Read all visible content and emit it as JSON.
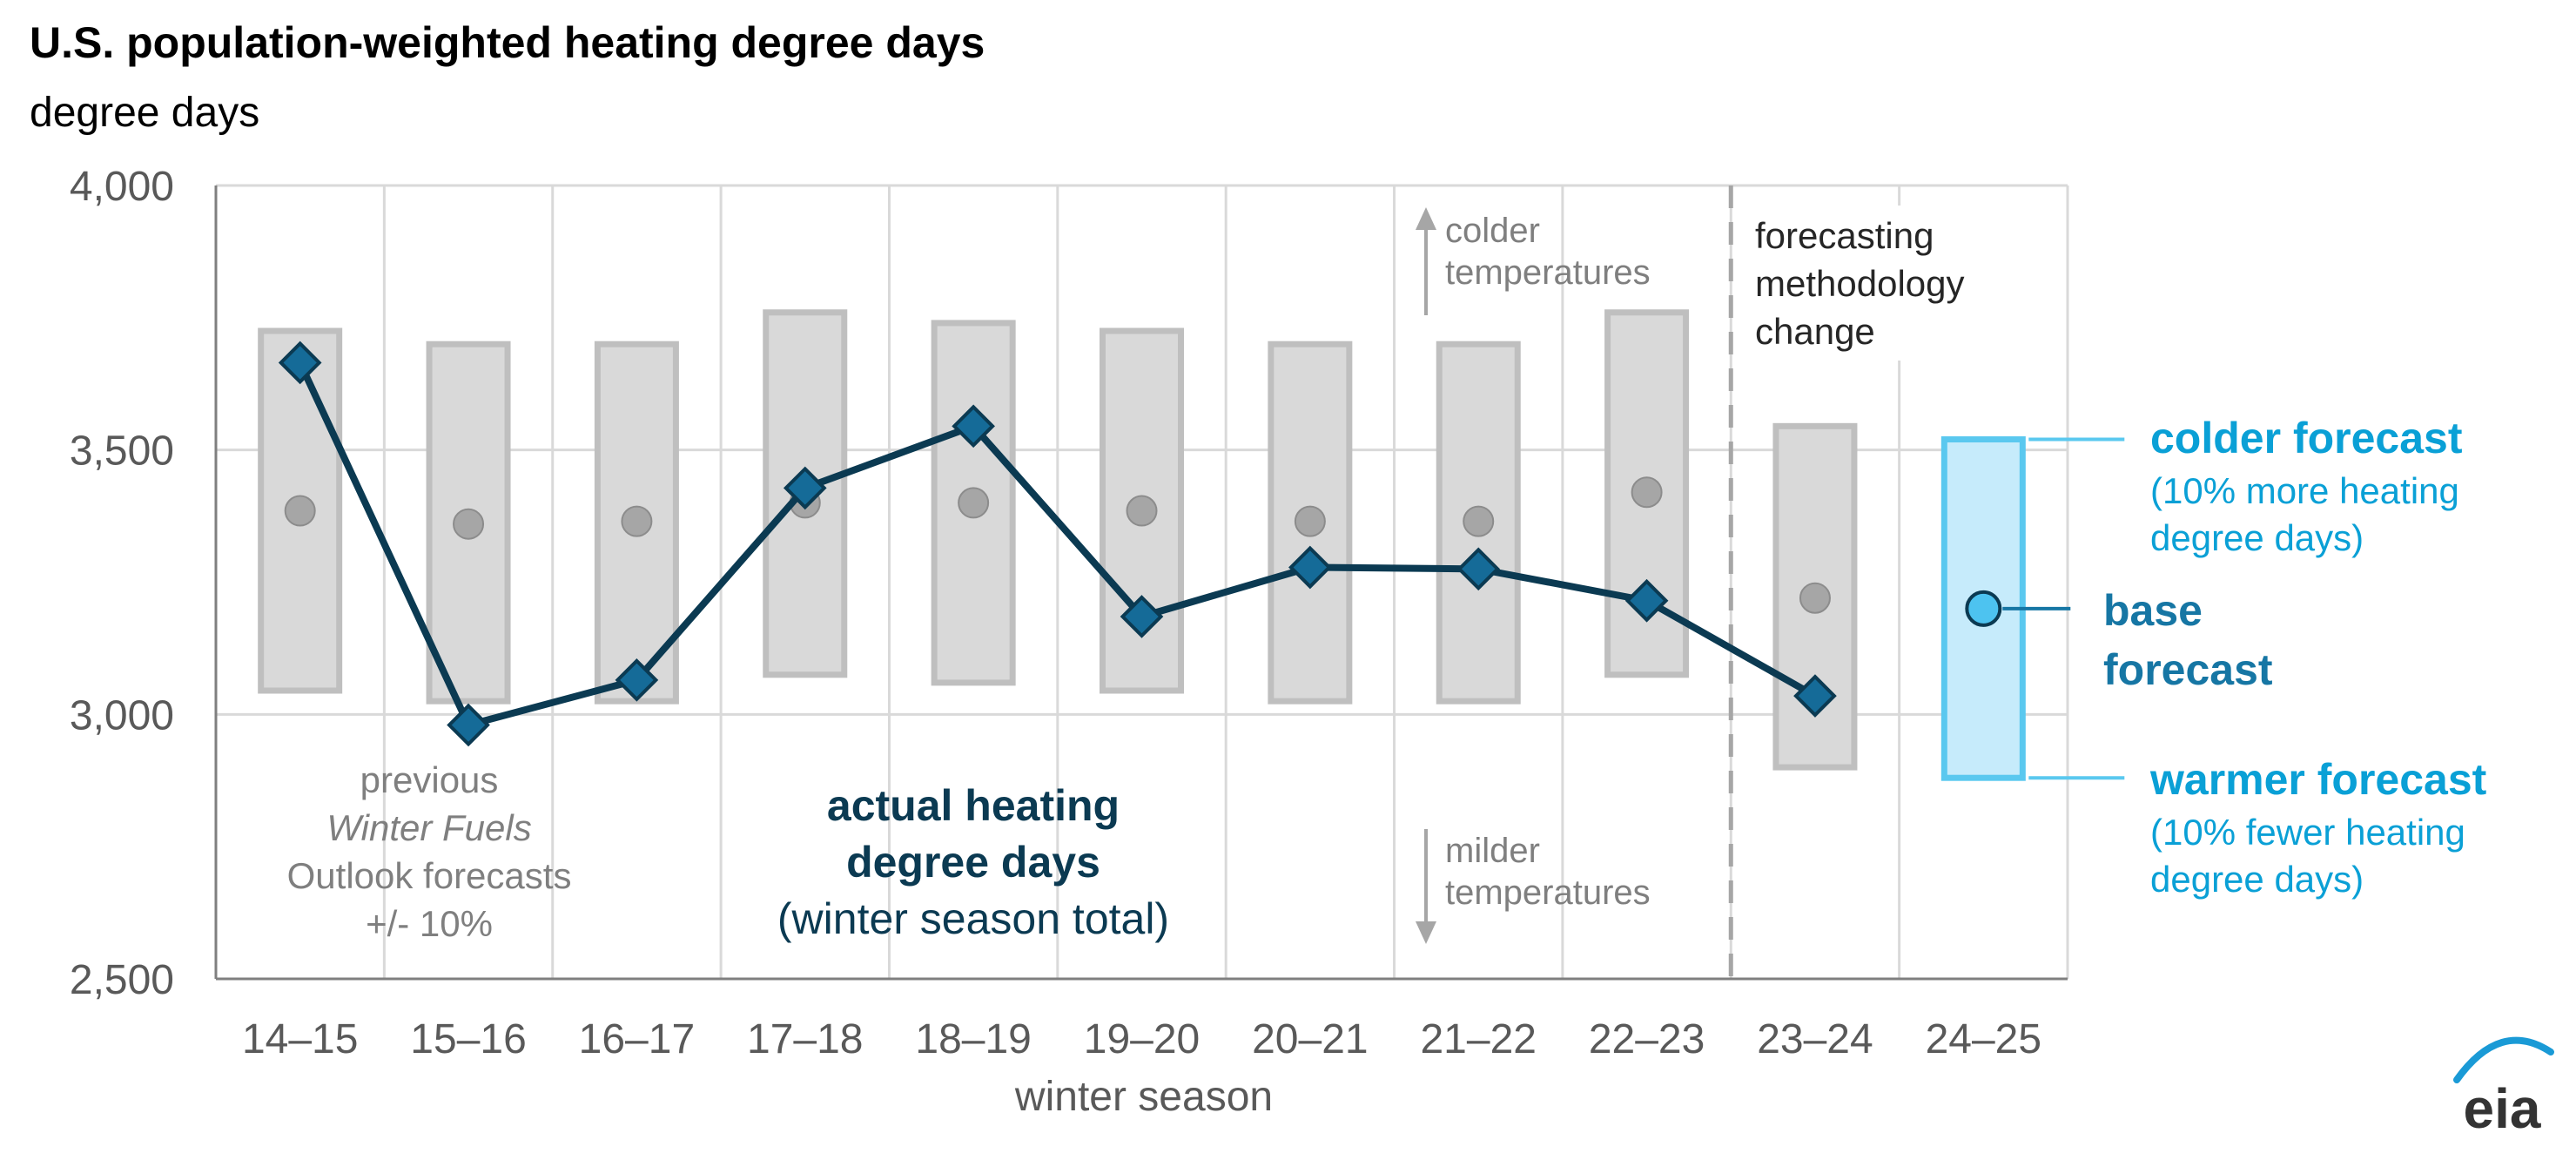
{
  "chart_data": {
    "type": "line",
    "title": "U.S. population-weighted heating degree days",
    "subtitle": "degree days",
    "xlabel": "winter season",
    "ylabel": "",
    "ylim": [
      2500,
      4000
    ],
    "yticks": [
      "2,500",
      "3,000",
      "3,500",
      "4,000"
    ],
    "categories": [
      "14–15",
      "15–16",
      "16–17",
      "17–18",
      "18–19",
      "19–20",
      "20–21",
      "21–22",
      "22–23",
      "23–24",
      "24–25"
    ],
    "series": [
      {
        "name": "actual heating degree days",
        "values": [
          3665,
          2980,
          3065,
          3428,
          3545,
          3185,
          3278,
          3275,
          3215,
          3035,
          null
        ]
      }
    ],
    "previous_forecasts": {
      "mid": [
        3385,
        3360,
        3365,
        3400,
        3400,
        3385,
        3365,
        3365,
        3420,
        3220
      ],
      "low": [
        3045,
        3025,
        3025,
        3075,
        3060,
        3045,
        3025,
        3025,
        3075,
        2900
      ],
      "high": [
        3725,
        3700,
        3700,
        3760,
        3740,
        3725,
        3700,
        3700,
        3760,
        3545
      ]
    },
    "forecast_2425": {
      "base": 3200,
      "low": 2880,
      "high": 3520
    },
    "annotations": {
      "previous_forecasts": [
        "previous",
        "Winter Fuels",
        "Outlook forecasts",
        "+/- 10%"
      ],
      "actual_line1": "actual heating",
      "actual_line2": "degree days",
      "actual_line3": "(winter season total)",
      "colder_temps": [
        "colder",
        "temperatures"
      ],
      "milder_temps": [
        "milder",
        "temperatures"
      ],
      "methodology": [
        "forecasting",
        "methodology",
        "change"
      ],
      "colder_forecast": "colder forecast",
      "colder_forecast_note": [
        "(10% more heating",
        "degree days)"
      ],
      "base_forecast": [
        "base",
        "forecast"
      ],
      "warmer_forecast": "warmer forecast",
      "warmer_forecast_note": [
        "(10% fewer heating",
        "degree days)"
      ]
    },
    "grid": true,
    "logo": "eia",
    "colors": {
      "actual_line": "#0b3a52",
      "marker": "#156b98",
      "forecast_box_fill": "#d9d9d9",
      "forecast_box_stroke": "#bfbfbf",
      "forecast_dot": "#a6a6a6",
      "new_forecast_fill": "#c6ebfb",
      "new_forecast_stroke": "#5ac8ef",
      "new_forecast_text": "#0aa0d6",
      "base_text": "#1676a4"
    }
  }
}
